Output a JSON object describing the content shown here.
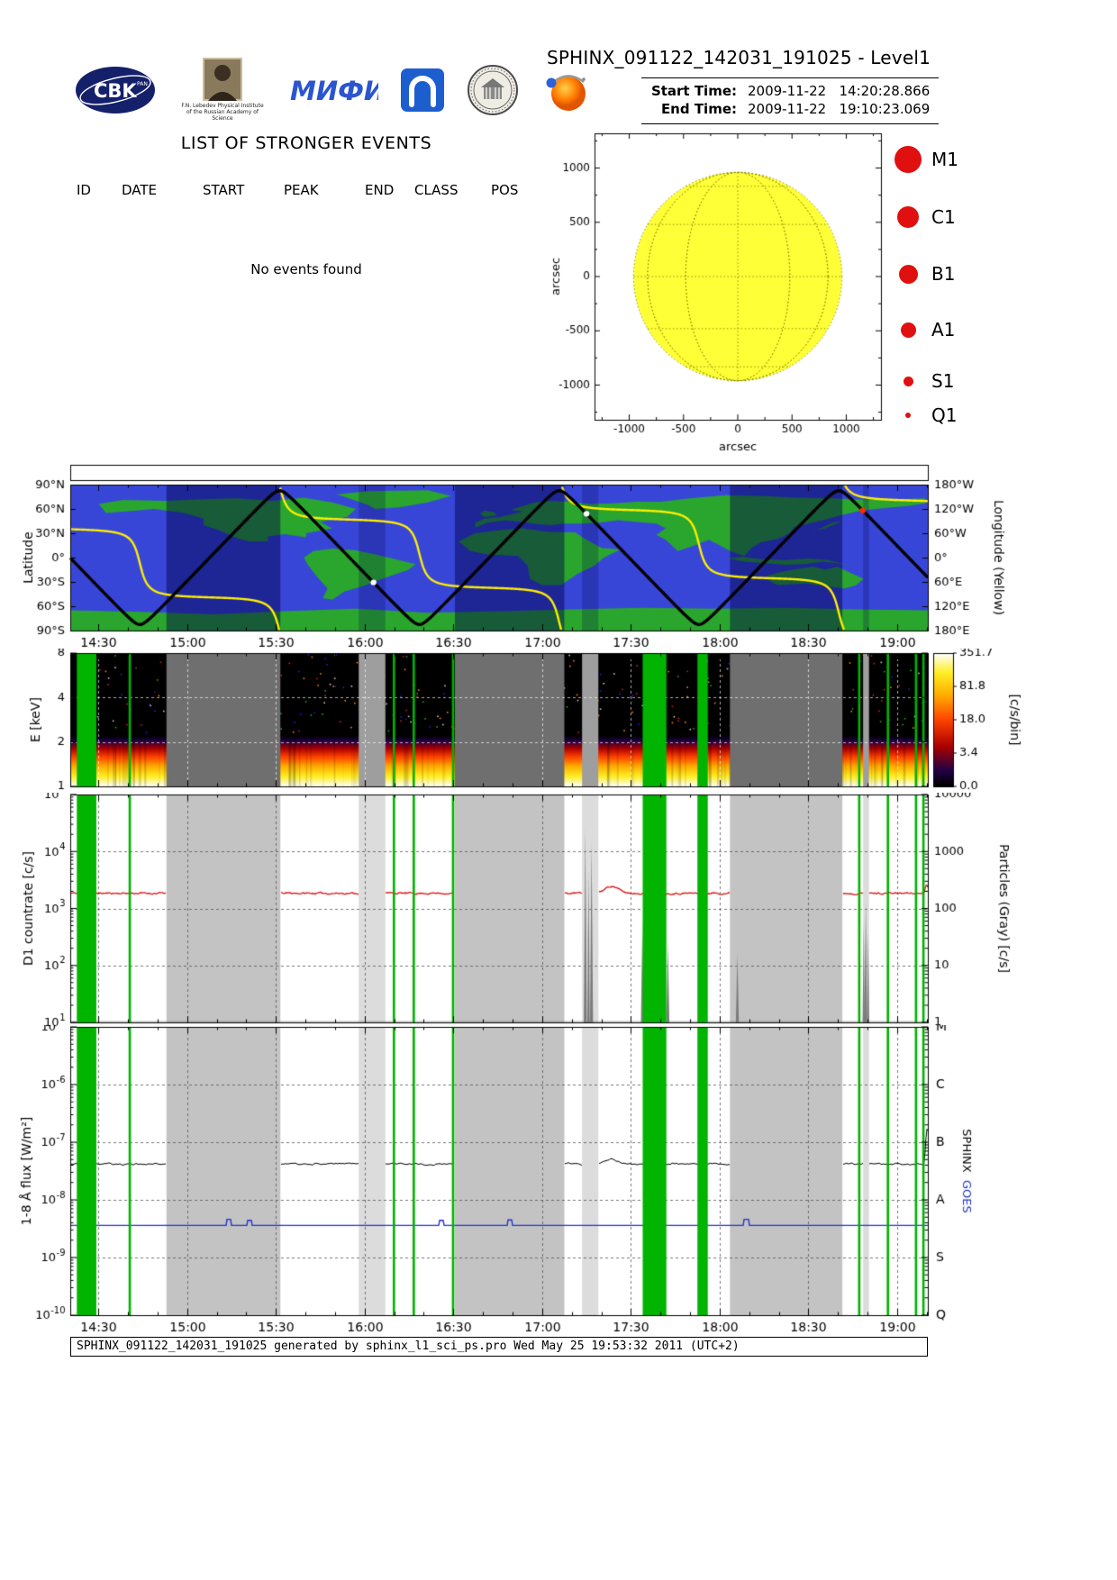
{
  "header": {
    "title": "SPHINX_091122_142031_191025 - Level1",
    "start_time_label": "Start Time:",
    "start_time_value": "2009-11-22   14:20:28.866",
    "end_time_label": "End Time:",
    "end_time_value": "2009-11-22   19:10:23.069",
    "lebedev_caption": "F.N. Lebedev Physical Institute of the Russian Academy of Science",
    "logos_text": {
      "cbk": "CBK",
      "cbk_sub": "PAN",
      "mephi": "МИФИ"
    }
  },
  "events": {
    "title": "LIST OF STRONGER EVENTS",
    "columns": [
      "ID",
      "DATE",
      "START",
      "PEAK",
      "END",
      "CLASS",
      "POS"
    ],
    "rows": [],
    "empty_message": "No events found"
  },
  "legend": {
    "color": "#e01010",
    "items": [
      {
        "label": "M1",
        "diameter": 30
      },
      {
        "label": "C1",
        "diameter": 24
      },
      {
        "label": "B1",
        "diameter": 21
      },
      {
        "label": "A1",
        "diameter": 17
      },
      {
        "label": "S1",
        "diameter": 11
      },
      {
        "label": "Q1",
        "diameter": 6
      }
    ]
  },
  "footer": {
    "text": "SPHINX_091122_142031_191025 generated by sphinx_l1_sci_ps.pro Wed May 25 19:53:32 2011 (UTC+2)"
  },
  "timeline": {
    "start_min": 860.48,
    "end_min": 1150.39,
    "tick_minutes": [
      870,
      900,
      930,
      960,
      990,
      1020,
      1050,
      1080,
      1110,
      1140
    ],
    "tick_labels": [
      "14:30",
      "15:00",
      "15:30",
      "16:00",
      "16:30",
      "17:00",
      "17:30",
      "18:00",
      "18:30",
      "19:00"
    ],
    "gray_bands": [
      {
        "start": 893.0,
        "end": 931.5,
        "shade": "dark"
      },
      {
        "start": 958.0,
        "end": 967.0,
        "shade": "light"
      },
      {
        "start": 990.5,
        "end": 1027.5,
        "shade": "dark"
      },
      {
        "start": 1033.5,
        "end": 1039.0,
        "shade": "light"
      },
      {
        "start": 1083.5,
        "end": 1121.5,
        "shade": "dark"
      },
      {
        "start": 1128.5,
        "end": 1130.5,
        "shade": "light"
      }
    ],
    "green_bands": [
      {
        "start": 862.7,
        "end": 869.3
      },
      {
        "start": 880.2,
        "end": 881.0
      },
      {
        "start": 969.5,
        "end": 970.3
      },
      {
        "start": 976.2,
        "end": 977.0
      },
      {
        "start": 989.5,
        "end": 990.3
      },
      {
        "start": 1054.0,
        "end": 1062.0
      },
      {
        "start": 1072.5,
        "end": 1076.0
      },
      {
        "start": 1126.8,
        "end": 1127.6
      },
      {
        "start": 1136.5,
        "end": 1137.3
      },
      {
        "start": 1146.0,
        "end": 1146.8
      },
      {
        "start": 1148.5,
        "end": 1149.3
      }
    ]
  },
  "chart_data": [
    {
      "id": "sun_map",
      "type": "scatter",
      "xlabel": "arcsec",
      "ylabel": "arcsec",
      "xlim": [
        -1320,
        1320
      ],
      "ylim": [
        -1320,
        1320
      ],
      "xticks": [
        -1000,
        -500,
        0,
        500,
        1000
      ],
      "yticks": [
        1000,
        500,
        0,
        -500,
        -1000
      ],
      "sun": {
        "radius_arcsec": 960,
        "fill": "#ffff38",
        "grid_step_deg": 30
      },
      "flares_plotted": []
    },
    {
      "id": "ground_track",
      "type": "line",
      "ylabel": "Latitude",
      "y2label": "Longitude (Yellow)",
      "lat_ticks": [
        "90°N",
        "60°N",
        "30°N",
        "0°",
        "30°S",
        "60°S",
        "90°S"
      ],
      "lon_ticks": [
        "180°W",
        "120°W",
        "60°W",
        "0°",
        "60°E",
        "120°E",
        "180°E"
      ],
      "orbit": {
        "inclination_deg": 82.5,
        "period_min": 94.5,
        "lat_min_at_min_of_day": 884.0,
        "asc_node_lon_deg": 121.8,
        "earth_rot_deg_per_min": 0.25068
      },
      "track_color": "#000000",
      "lon_color": "#ffee00",
      "markers": [
        {
          "t": 963.0,
          "color": "#ffffff"
        },
        {
          "t": 1035.0,
          "color": "#ffffff"
        },
        {
          "t": 1128.4,
          "color": "#ff2a00"
        }
      ],
      "map_colors": {
        "ocean": "#3846d8",
        "land": "#2aa62e",
        "night_overlay_dark": "rgba(0,0,70,0.45)",
        "night_overlay_light": "rgba(0,0,70,0.22)"
      }
    },
    {
      "id": "spectrogram",
      "type": "heatmap",
      "ylabel": "E [keV]",
      "ylim": [
        1,
        8
      ],
      "yticks": [
        1,
        2,
        4,
        8
      ],
      "yticks_minor": [
        3,
        5,
        6,
        7
      ],
      "bright_band_top_kev": 2.2,
      "colorbar": {
        "label": "[c/s/bin]",
        "ticks": [
          "0.0",
          "3.4",
          "18.0",
          "81.8",
          "351.7"
        ]
      }
    },
    {
      "id": "d1_countrate",
      "type": "line",
      "ylabel": "D1 countrate [c/s]",
      "ylim_exp": [
        1,
        5
      ],
      "y2label": "Particles (Gray) [c/s]",
      "y2ticks": [
        "10000",
        "1000",
        "100",
        "10",
        "1"
      ],
      "series": [
        {
          "name": "sphinx_d1",
          "color": "#e01010",
          "baseline": 1850,
          "noise": 0.05,
          "humps": [
            {
              "center": 1043.5,
              "width": 3.0,
              "amp": 0.33
            },
            {
              "center": 1150.0,
              "width": 0.6,
              "amp": 0.45
            }
          ]
        },
        {
          "name": "particles",
          "color": "#7a7a7a",
          "baseline": 1,
          "spikes": [
            {
              "t": 1034.6,
              "peak": 2500,
              "w": 0.5
            },
            {
              "t": 1035.7,
              "peak": 500,
              "w": 0.4
            },
            {
              "t": 1036.7,
              "peak": 1500,
              "w": 0.5
            },
            {
              "t": 1053.9,
              "peak": 55,
              "w": 0.5
            },
            {
              "t": 1056.8,
              "peak": 35,
              "w": 0.6
            },
            {
              "t": 1062.5,
              "peak": 28,
              "w": 0.5
            },
            {
              "t": 1086.0,
              "peak": 16,
              "w": 0.5
            },
            {
              "t": 1128.7,
              "peak": 55,
              "w": 0.35
            },
            {
              "t": 1129.4,
              "peak": 130,
              "w": 0.45
            },
            {
              "t": 1130.2,
              "peak": 40,
              "w": 0.35
            }
          ]
        }
      ]
    },
    {
      "id": "flux",
      "type": "line",
      "ylabel": "1-8 Å flux [W/m²]",
      "ylim_exp": [
        -10,
        -5
      ],
      "right_classes": [
        "M",
        "C",
        "B",
        "A",
        "S",
        "Q"
      ],
      "right_label_sphinx": "SPHINX",
      "right_label_goes": "GOES",
      "series": [
        {
          "name": "sphinx",
          "color": "#000000",
          "baseline": 4.2e-08,
          "noise": 0.05,
          "humps": [
            {
              "center": 1043.5,
              "width": 3.0,
              "amp": 0.22
            },
            {
              "center": 1150.2,
              "width": 0.6,
              "amp": 3.0
            }
          ]
        },
        {
          "name": "goes",
          "color": "#2233cc",
          "baseline": 3.6e-09,
          "blips": [
            {
              "t": 914,
              "v": 4.6e-09
            },
            {
              "t": 921,
              "v": 4.4e-09
            },
            {
              "t": 986,
              "v": 4.4e-09
            },
            {
              "t": 1009,
              "v": 4.5e-09
            },
            {
              "t": 1089,
              "v": 4.6e-09
            }
          ]
        }
      ]
    }
  ],
  "world_map": {
    "continents": [
      [
        [
          -168,
          66
        ],
        [
          -158,
          71
        ],
        [
          -140,
          70
        ],
        [
          -125,
          72
        ],
        [
          -110,
          73
        ],
        [
          -95,
          70
        ],
        [
          -82,
          74
        ],
        [
          -70,
          68
        ],
        [
          -60,
          60
        ],
        [
          -64,
          50
        ],
        [
          -75,
          44
        ],
        [
          -70,
          36
        ],
        [
          -81,
          30
        ],
        [
          -81,
          25
        ],
        [
          -90,
          29
        ],
        [
          -97,
          26
        ],
        [
          -97,
          20
        ],
        [
          -105,
          20
        ],
        [
          -110,
          24
        ],
        [
          -117,
          33
        ],
        [
          -124,
          40
        ],
        [
          -124,
          48
        ],
        [
          -132,
          55
        ],
        [
          -145,
          60
        ],
        [
          -152,
          58
        ],
        [
          -165,
          55
        ]
      ],
      [
        [
          -52,
          60
        ],
        [
          -42,
          62
        ],
        [
          -30,
          68
        ],
        [
          -20,
          76
        ],
        [
          -30,
          83
        ],
        [
          -55,
          82
        ],
        [
          -68,
          78
        ],
        [
          -60,
          70
        ],
        [
          -55,
          65
        ]
      ],
      [
        [
          -78,
          8
        ],
        [
          -70,
          11
        ],
        [
          -60,
          9
        ],
        [
          -52,
          4
        ],
        [
          -42,
          -3
        ],
        [
          -35,
          -8
        ],
        [
          -38,
          -15
        ],
        [
          -48,
          -25
        ],
        [
          -57,
          -35
        ],
        [
          -65,
          -42
        ],
        [
          -70,
          -52
        ],
        [
          -74,
          -50
        ],
        [
          -72,
          -38
        ],
        [
          -76,
          -25
        ],
        [
          -80,
          -10
        ],
        [
          -82,
          0
        ]
      ],
      [
        [
          -17,
          20
        ],
        [
          -10,
          30
        ],
        [
          0,
          34
        ],
        [
          10,
          36
        ],
        [
          20,
          32
        ],
        [
          32,
          31
        ],
        [
          35,
          25
        ],
        [
          43,
          12
        ],
        [
          51,
          10
        ],
        [
          44,
          0
        ],
        [
          40,
          -10
        ],
        [
          33,
          -20
        ],
        [
          26,
          -34
        ],
        [
          18,
          -34
        ],
        [
          13,
          -26
        ],
        [
          12,
          -10
        ],
        [
          8,
          2
        ],
        [
          -5,
          4
        ],
        [
          -12,
          8
        ]
      ],
      [
        [
          -10,
          37
        ],
        [
          -5,
          43
        ],
        [
          3,
          46
        ],
        [
          10,
          44
        ],
        [
          16,
          41
        ],
        [
          22,
          40
        ],
        [
          27,
          42
        ],
        [
          34,
          42
        ],
        [
          42,
          43
        ],
        [
          50,
          46
        ],
        [
          58,
          44
        ],
        [
          66,
          42
        ],
        [
          70,
          36
        ],
        [
          66,
          28
        ],
        [
          70,
          22
        ],
        [
          75,
          8
        ],
        [
          82,
          15
        ],
        [
          88,
          22
        ],
        [
          92,
          16
        ],
        [
          97,
          8
        ],
        [
          103,
          2
        ],
        [
          106,
          12
        ],
        [
          110,
          19
        ],
        [
          117,
          23
        ],
        [
          122,
          30
        ],
        [
          124,
          38
        ],
        [
          130,
          42
        ],
        [
          137,
          47
        ],
        [
          143,
          52
        ],
        [
          152,
          58
        ],
        [
          162,
          61
        ],
        [
          172,
          64
        ],
        [
          179,
          67
        ],
        [
          179,
          73
        ],
        [
          168,
          72
        ],
        [
          155,
          71
        ],
        [
          140,
          73
        ],
        [
          125,
          74
        ],
        [
          110,
          76
        ],
        [
          95,
          77
        ],
        [
          80,
          73
        ],
        [
          68,
          69
        ],
        [
          58,
          69
        ],
        [
          48,
          67
        ],
        [
          38,
          66
        ],
        [
          30,
          69
        ],
        [
          22,
          70
        ],
        [
          15,
          68
        ],
        [
          8,
          62
        ],
        [
          5,
          59
        ],
        [
          10,
          57
        ],
        [
          6,
          54
        ],
        [
          0,
          50
        ],
        [
          -6,
          48
        ],
        [
          -10,
          43
        ]
      ],
      [
        [
          -6,
          50
        ],
        [
          -1,
          52
        ],
        [
          -2,
          56
        ],
        [
          -6,
          58
        ],
        [
          -8,
          54
        ]
      ],
      [
        [
          96,
          -1
        ],
        [
          103,
          -5
        ],
        [
          112,
          -7
        ],
        [
          120,
          -9
        ],
        [
          128,
          -8
        ],
        [
          136,
          -5
        ],
        [
          142,
          -7
        ],
        [
          146,
          -9
        ],
        [
          138,
          -3
        ],
        [
          130,
          -1
        ],
        [
          120,
          -3
        ],
        [
          110,
          -2
        ],
        [
          102,
          1
        ]
      ],
      [
        [
          131,
          33
        ],
        [
          137,
          36
        ],
        [
          141,
          41
        ],
        [
          144,
          45
        ],
        [
          140,
          43
        ],
        [
          134,
          35
        ]
      ],
      [
        [
          113,
          -22
        ],
        [
          118,
          -18
        ],
        [
          125,
          -14
        ],
        [
          132,
          -11
        ],
        [
          137,
          -15
        ],
        [
          142,
          -11
        ],
        [
          147,
          -18
        ],
        [
          153,
          -26
        ],
        [
          150,
          -34
        ],
        [
          145,
          -38
        ],
        [
          136,
          -35
        ],
        [
          129,
          -32
        ],
        [
          117,
          -34
        ],
        [
          113,
          -28
        ]
      ],
      [
        [
          -180,
          -65
        ],
        [
          -150,
          -67
        ],
        [
          -120,
          -70
        ],
        [
          -90,
          -66
        ],
        [
          -60,
          -63
        ],
        [
          -30,
          -68
        ],
        [
          0,
          -66
        ],
        [
          30,
          -64
        ],
        [
          60,
          -62
        ],
        [
          90,
          -63
        ],
        [
          120,
          -62
        ],
        [
          150,
          -64
        ],
        [
          180,
          -65
        ],
        [
          180,
          -90
        ],
        [
          -180,
          -90
        ]
      ]
    ]
  }
}
